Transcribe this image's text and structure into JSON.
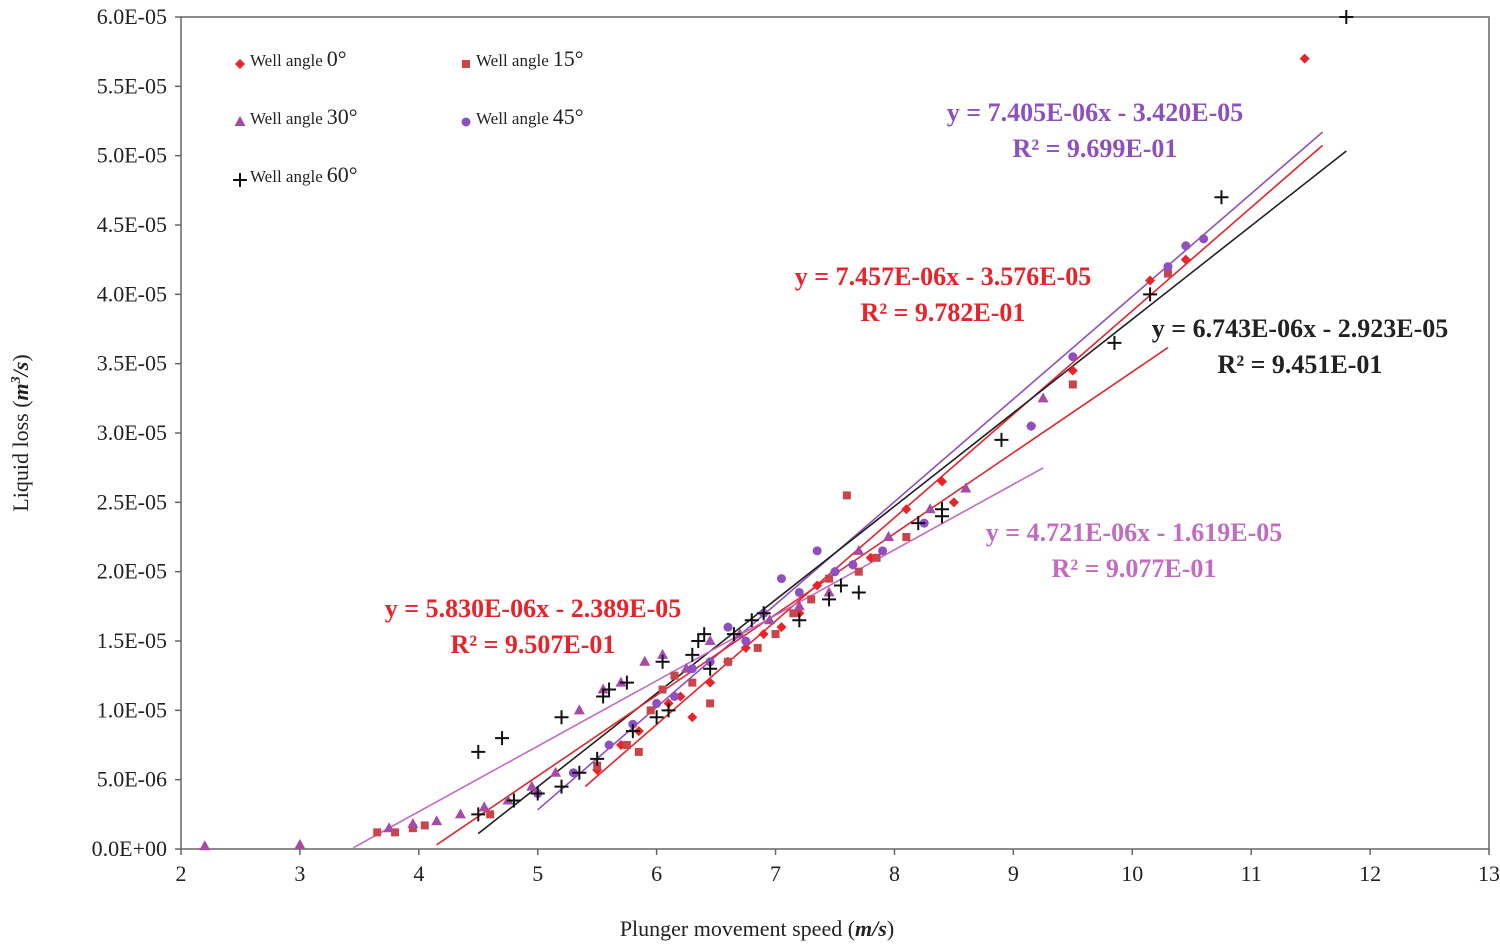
{
  "chart_data": {
    "type": "scatter",
    "title": "",
    "xlabel": "Plunger movement speed",
    "xlabel_unit": "m/s",
    "ylabel": "Liquid loss",
    "ylabel_unit": "m",
    "ylabel_unit_sup": "3",
    "ylabel_unit_tail": "/s",
    "xlim": [
      2,
      13
    ],
    "ylim": [
      0,
      6e-05
    ],
    "x_ticks": [
      "2",
      "3",
      "4",
      "5",
      "6",
      "7",
      "8",
      "9",
      "10",
      "11",
      "12",
      "13"
    ],
    "y_ticks": [
      "0.0E+00",
      "5.0E-06",
      "1.0E-05",
      "1.5E-05",
      "2.0E-05",
      "2.5E-05",
      "3.0E-05",
      "3.5E-05",
      "4.0E-05",
      "4.5E-05",
      "5.0E-05",
      "5.5E-05",
      "6.0E-05"
    ],
    "legend_position": "top-left",
    "series": [
      {
        "name": "Well angle 0°",
        "legend_name": "Well angle",
        "legend_angle": "0°",
        "marker": "diamond",
        "color": "#e8232a",
        "trend_color": "#e8232a",
        "x": [
          5.5,
          5.7,
          5.85,
          6.1,
          6.2,
          6.3,
          6.45,
          6.6,
          6.75,
          6.9,
          7.05,
          7.2,
          7.35,
          7.5,
          7.65,
          7.8,
          8.1,
          8.4,
          8.5,
          9.15,
          9.5,
          10.15,
          10.45,
          11.45
        ],
        "y": [
          5.7e-06,
          7.5e-06,
          8.5e-06,
          1.05e-05,
          1.1e-05,
          9.5e-06,
          1.2e-05,
          1.35e-05,
          1.45e-05,
          1.55e-05,
          1.6e-05,
          1.7e-05,
          1.9e-05,
          2e-05,
          2.05e-05,
          2.1e-05,
          2.45e-05,
          2.65e-05,
          2.5e-05,
          3.05e-05,
          3.45e-05,
          4.1e-05,
          4.25e-05,
          5.7e-05
        ]
      },
      {
        "name": "Well angle 15°",
        "legend_name": "Well angle",
        "legend_angle": "15°",
        "marker": "square",
        "color": "#c8454b",
        "trend_color": "#e8232a",
        "x": [
          3.65,
          3.8,
          3.95,
          4.05,
          4.6,
          5.5,
          5.75,
          5.85,
          5.95,
          6.05,
          6.15,
          6.3,
          6.45,
          6.6,
          6.85,
          7.0,
          7.15,
          7.3,
          7.45,
          7.6,
          7.7,
          7.85,
          8.1,
          9.5,
          10.3
        ],
        "y": [
          1.2e-06,
          1.2e-06,
          1.5e-06,
          1.7e-06,
          2.5e-06,
          6e-06,
          7.5e-06,
          7e-06,
          1e-05,
          1.15e-05,
          1.25e-05,
          1.2e-05,
          1.05e-05,
          1.35e-05,
          1.45e-05,
          1.55e-05,
          1.7e-05,
          1.8e-05,
          1.95e-05,
          2.55e-05,
          2e-05,
          2.1e-05,
          2.25e-05,
          3.35e-05,
          4.15e-05
        ]
      },
      {
        "name": "Well angle 30°",
        "legend_name": "Well angle",
        "legend_angle": "30°",
        "marker": "triangle",
        "color": "#a64ca6",
        "trend_color": "#c26bc2",
        "x": [
          2.2,
          3.0,
          3.75,
          3.95,
          4.15,
          4.35,
          4.55,
          4.75,
          4.95,
          5.15,
          5.35,
          5.55,
          5.7,
          5.9,
          6.05,
          6.25,
          6.45,
          6.7,
          6.95,
          7.2,
          7.45,
          7.7,
          7.95,
          8.3,
          8.6,
          9.25
        ],
        "y": [
          2e-07,
          3e-07,
          1.5e-06,
          1.8e-06,
          2e-06,
          2.5e-06,
          3e-06,
          3.5e-06,
          4.5e-06,
          5.5e-06,
          1e-05,
          1.15e-05,
          1.2e-05,
          1.35e-05,
          1.4e-05,
          1.3e-05,
          1.5e-05,
          1.55e-05,
          1.65e-05,
          1.75e-05,
          1.85e-05,
          2.15e-05,
          2.25e-05,
          2.45e-05,
          2.6e-05,
          3.25e-05
        ]
      },
      {
        "name": "Well angle 45°",
        "legend_name": "Well angle",
        "legend_angle": "45°",
        "marker": "circle",
        "color": "#8e4fbf",
        "trend_color": "#8e4fbf",
        "x": [
          5.0,
          5.3,
          5.6,
          5.8,
          6.0,
          6.15,
          6.3,
          6.45,
          6.6,
          6.75,
          6.9,
          7.05,
          7.2,
          7.35,
          7.5,
          7.65,
          7.9,
          8.25,
          9.15,
          9.5,
          10.3,
          10.45,
          10.6
        ],
        "y": [
          4e-06,
          5.5e-06,
          7.5e-06,
          9e-06,
          1.05e-05,
          1.1e-05,
          1.3e-05,
          1.35e-05,
          1.6e-05,
          1.5e-05,
          1.7e-05,
          1.95e-05,
          1.85e-05,
          2.15e-05,
          2e-05,
          2.05e-05,
          2.15e-05,
          2.35e-05,
          3.05e-05,
          3.55e-05,
          4.2e-05,
          4.35e-05,
          4.4e-05
        ]
      },
      {
        "name": "Well angle 60°",
        "legend_name": "Well angle",
        "legend_angle": "60°",
        "marker": "plus",
        "color": "#111111",
        "trend_color": "#222222",
        "x": [
          4.5,
          4.5,
          4.7,
          4.8,
          5.0,
          5.2,
          5.2,
          5.35,
          5.5,
          5.55,
          5.6,
          5.75,
          5.8,
          6.0,
          6.05,
          6.1,
          6.3,
          6.35,
          6.4,
          6.45,
          6.65,
          6.8,
          6.9,
          7.2,
          7.45,
          7.55,
          7.7,
          8.2,
          8.4,
          8.4,
          8.9,
          9.85,
          10.15,
          10.75,
          11.8
        ],
        "y": [
          2.5e-06,
          7e-06,
          8e-06,
          3.5e-06,
          4e-06,
          4.5e-06,
          9.5e-06,
          5.5e-06,
          6.5e-06,
          1.1e-05,
          1.15e-05,
          1.2e-05,
          8.5e-06,
          9.5e-06,
          1.35e-05,
          1e-05,
          1.4e-05,
          1.5e-05,
          1.55e-05,
          1.3e-05,
          1.55e-05,
          1.65e-05,
          1.7e-05,
          1.65e-05,
          1.8e-05,
          1.9e-05,
          1.85e-05,
          2.35e-05,
          2.4e-05,
          2.45e-05,
          2.95e-05,
          3.65e-05,
          4e-05,
          4.7e-05,
          6e-05
        ]
      }
    ],
    "trendlines": [
      {
        "series": "Well angle 45°",
        "slope": 7.405e-06,
        "intercept": -3.42e-05,
        "x_range": [
          5.0,
          11.6
        ],
        "color": "#8e4fbf",
        "equation": "y = 7.405E-06x - 3.420E-05",
        "r2": "R² = 9.699E-01",
        "label_position": "upper-right"
      },
      {
        "series": "Well angle 0°",
        "slope": 7.457e-06,
        "intercept": -3.576e-05,
        "x_range": [
          5.4,
          11.6
        ],
        "color": "#e8232a",
        "equation": "y = 7.457E-06x - 3.576E-05",
        "r2": "R² = 9.782E-01",
        "label_position": "center-right"
      },
      {
        "series": "Well angle 60°",
        "slope": 6.743e-06,
        "intercept": -2.923e-05,
        "x_range": [
          4.5,
          11.8
        ],
        "color": "#222222",
        "equation": "y = 6.743E-06x - 2.923E-05",
        "r2": "R² = 9.451E-01",
        "label_position": "right"
      },
      {
        "series": "Well angle 15°",
        "slope": 5.83e-06,
        "intercept": -2.389e-05,
        "x_range": [
          4.15,
          10.3
        ],
        "color": "#e8232a",
        "equation": "y = 5.830E-06x - 2.389E-05",
        "r2": "R² = 9.507E-01",
        "label_position": "lower-left"
      },
      {
        "series": "Well angle 30°",
        "slope": 4.721e-06,
        "intercept": -1.619e-05,
        "x_range": [
          3.45,
          9.25
        ],
        "color": "#c26bc2",
        "equation": "y = 4.721E-06x - 1.619E-05",
        "r2": "R² = 9.077E-01",
        "label_position": "lower-right"
      }
    ]
  }
}
